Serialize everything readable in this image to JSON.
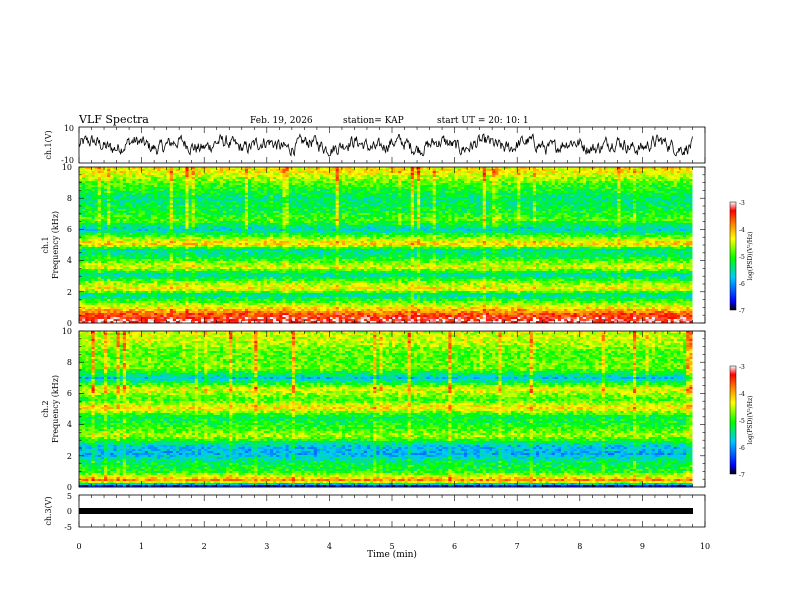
{
  "header": {
    "title": "VLF Spectra",
    "date": "Feb. 19, 2026",
    "station": "station= KAP",
    "start": "start  UT =   20: 10: 1"
  },
  "colors": {
    "background": "#ffffff",
    "axis": "#000000",
    "trace": "#000000",
    "colormap": [
      "#000000",
      "#0000ff",
      "#00c8ff",
      "#00ff00",
      "#ffff00",
      "#ff8000",
      "#ff0000",
      "#ffffff"
    ]
  },
  "chart_data": [
    {
      "type": "line",
      "name": "ch1-waveform",
      "ylabel": "ch.1(V)",
      "ylim": [
        -10,
        10
      ],
      "yticks": [
        "10",
        "-10"
      ],
      "xlim": [
        0,
        10
      ],
      "x_data_end": 9.8,
      "description_values": "noisy waveform oscillating roughly between -5 and +5 V"
    },
    {
      "type": "heatmap",
      "name": "ch1-spectrogram",
      "ylabel": "ch.1\nFrequency  (kHz)",
      "ylim": [
        0,
        10
      ],
      "yticks": [
        "0",
        "2",
        "4",
        "6",
        "8",
        "10"
      ],
      "xlim": [
        0,
        9.8
      ],
      "colorbar": {
        "label": "log(PSD)(V^2/Hz)",
        "range": [
          -7,
          -3
        ],
        "ticks": [
          "-3",
          "-4",
          "-5",
          "-6",
          "-7"
        ]
      },
      "bands": [
        {
          "f": 0.1,
          "level": -3.2
        },
        {
          "f": 0.4,
          "level": -3.4
        },
        {
          "f": 1.2,
          "level": -4.6
        },
        {
          "f": 1.8,
          "level": -5.6
        },
        {
          "f": 2.2,
          "level": -4.3
        },
        {
          "f": 2.6,
          "level": -4.7
        },
        {
          "f": 3.1,
          "level": -5.6
        },
        {
          "f": 3.6,
          "level": -4.4
        },
        {
          "f": 4.3,
          "level": -5.3
        },
        {
          "f": 4.7,
          "level": -5.5
        },
        {
          "f": 5.1,
          "level": -4.1
        },
        {
          "f": 5.5,
          "level": -4.8
        },
        {
          "f": 6.0,
          "level": -5.7
        },
        {
          "f": 6.6,
          "level": -4.9
        },
        {
          "f": 7.2,
          "level": -5.2
        },
        {
          "f": 8.0,
          "level": -5.4
        },
        {
          "f": 9.0,
          "level": -4.9
        },
        {
          "f": 9.7,
          "level": -4.3
        }
      ]
    },
    {
      "type": "heatmap",
      "name": "ch2-spectrogram",
      "ylabel": "ch.2\nFrequency  (kHz)",
      "ylim": [
        0,
        10
      ],
      "yticks": [
        "0",
        "2",
        "4",
        "6",
        "8",
        "10"
      ],
      "xlim": [
        0,
        9.8
      ],
      "colorbar": {
        "label": "log(PSD)(V^2/Hz)",
        "range": [
          -7,
          -3
        ],
        "ticks": [
          "-3",
          "-4",
          "-5",
          "-6",
          "-7"
        ]
      },
      "bands": [
        {
          "f": 0.1,
          "level": -6.6
        },
        {
          "f": 0.4,
          "level": -3.8
        },
        {
          "f": 1.0,
          "level": -5.1
        },
        {
          "f": 1.6,
          "level": -5.3
        },
        {
          "f": 2.1,
          "level": -5.9
        },
        {
          "f": 2.6,
          "level": -5.8
        },
        {
          "f": 3.3,
          "level": -4.6
        },
        {
          "f": 3.8,
          "level": -5.0
        },
        {
          "f": 4.5,
          "level": -5.3
        },
        {
          "f": 5.1,
          "level": -4.2
        },
        {
          "f": 5.6,
          "level": -5.0
        },
        {
          "f": 6.3,
          "level": -4.4
        },
        {
          "f": 7.0,
          "level": -5.8
        },
        {
          "f": 7.6,
          "level": -4.8
        },
        {
          "f": 8.6,
          "level": -4.9
        },
        {
          "f": 9.5,
          "level": -4.5
        }
      ]
    },
    {
      "type": "line",
      "name": "ch3-waveform",
      "ylabel": "ch.3(V)",
      "ylim": [
        -5,
        5
      ],
      "yticks": [
        "5",
        "0",
        "-5"
      ],
      "xlim": [
        0,
        10
      ],
      "x_data_end": 9.8,
      "description_values": "saturated band near -1 V"
    }
  ],
  "xaxis": {
    "label": "Time  (min)",
    "ticks": [
      "0",
      "1",
      "2",
      "3",
      "4",
      "5",
      "6",
      "7",
      "8",
      "9",
      "10"
    ]
  }
}
